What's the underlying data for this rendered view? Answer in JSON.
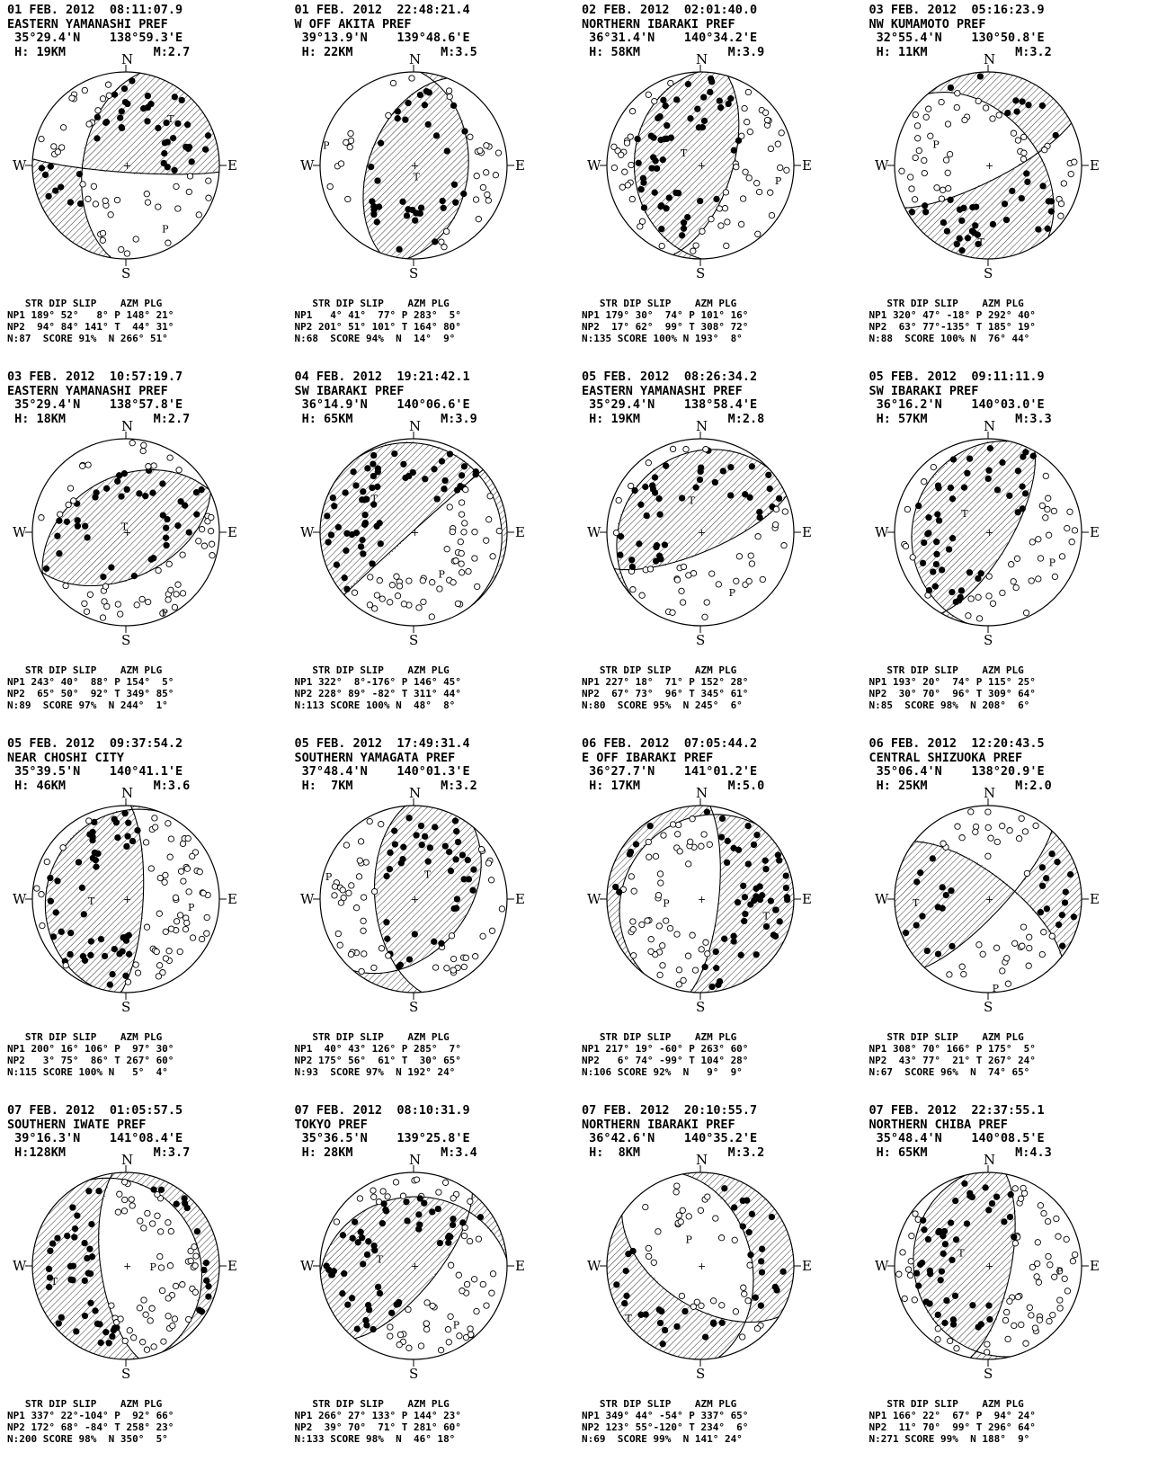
{
  "table_header": "   STR DIP SLIP    AZM PLG",
  "score_label": "SCORE",
  "directions": {
    "north": "N",
    "south": "S",
    "east": "E",
    "west": "W"
  },
  "axis_letters": {
    "p": "P",
    "t": "T"
  },
  "events": [
    {
      "date": "01 FEB. 2012",
      "time": "08:11:07.9",
      "region": "EASTERN YAMANASHI PREF",
      "lat": "35°29.4'N",
      "lon": "138°59.3'E",
      "depth": "H: 19KM",
      "mag": "M:2.7",
      "np1": {
        "str": 189,
        "dip": 52,
        "slip": 8
      },
      "np2": {
        "str": 94,
        "dip": 84,
        "slip": 141
      },
      "p": {
        "azm": 148,
        "plg": 21
      },
      "t": {
        "azm": 44,
        "plg": 31
      },
      "n": {
        "azm": 266,
        "plg": 51
      },
      "count": 87,
      "score": "91%",
      "np1_line": "NP1 189° 52°   8° P 148° 21°",
      "np2_line": "NP2  94° 84° 141° T  44° 31°",
      "n_line": "N:87  SCORE 91%  N 266° 51°"
    },
    {
      "date": "01 FEB. 2012",
      "time": "22:48:21.4",
      "region": "W OFF AKITA PREF",
      "lat": "39°13.9'N",
      "lon": "139°48.6'E",
      "depth": "H: 22KM",
      "mag": "M:3.5",
      "np1": {
        "str": 4,
        "dip": 41,
        "slip": 77
      },
      "np2": {
        "str": 201,
        "dip": 51,
        "slip": 101
      },
      "p": {
        "azm": 283,
        "plg": 5
      },
      "t": {
        "azm": 164,
        "plg": 80
      },
      "n": {
        "azm": 14,
        "plg": 9
      },
      "count": 68,
      "score": "94%",
      "np1_line": "NP1   4° 41°  77° P 283°  5°",
      "np2_line": "NP2 201° 51° 101° T 164° 80°",
      "n_line": "N:68  SCORE 94%  N  14°  9°"
    },
    {
      "date": "02 FEB. 2012",
      "time": "02:01:40.0",
      "region": "NORTHERN IBARAKI PREF",
      "lat": "36°31.4'N",
      "lon": "140°34.2'E",
      "depth": "H: 58KM",
      "mag": "M:3.9",
      "np1": {
        "str": 179,
        "dip": 30,
        "slip": 74
      },
      "np2": {
        "str": 17,
        "dip": 62,
        "slip": 99
      },
      "p": {
        "azm": 101,
        "plg": 16
      },
      "t": {
        "azm": 308,
        "plg": 72
      },
      "n": {
        "azm": 193,
        "plg": 8
      },
      "count": 135,
      "score": "100%",
      "np1_line": "NP1 179° 30°  74° P 101° 16°",
      "np2_line": "NP2  17° 62°  99° T 308° 72°",
      "n_line": "N:135 SCORE 100% N 193°  8°"
    },
    {
      "date": "03 FEB. 2012",
      "time": "05:16:23.9",
      "region": "NW KUMAMOTO PREF",
      "lat": "32°55.4'N",
      "lon": "130°50.8'E",
      "depth": "H: 11KM",
      "mag": "M:3.2",
      "np1": {
        "str": 320,
        "dip": 47,
        "slip": -18
      },
      "np2": {
        "str": 63,
        "dip": 77,
        "slip": -135
      },
      "p": {
        "azm": 292,
        "plg": 40
      },
      "t": {
        "azm": 185,
        "plg": 19
      },
      "n": {
        "azm": 76,
        "plg": 44
      },
      "count": 88,
      "score": "100%",
      "np1_line": "NP1 320° 47° -18° P 292° 40°",
      "np2_line": "NP2  63° 77°-135° T 185° 19°",
      "n_line": "N:88  SCORE 100% N  76° 44°"
    },
    {
      "date": "03 FEB. 2012",
      "time": "10:57:19.7",
      "region": "EASTERN YAMANASHI PREF",
      "lat": "35°29.4'N",
      "lon": "138°57.8'E",
      "depth": "H: 18KM",
      "mag": "M:2.7",
      "np1": {
        "str": 243,
        "dip": 40,
        "slip": 88
      },
      "np2": {
        "str": 65,
        "dip": 50,
        "slip": 92
      },
      "p": {
        "azm": 154,
        "plg": 5
      },
      "t": {
        "azm": 349,
        "plg": 85
      },
      "n": {
        "azm": 244,
        "plg": 1
      },
      "count": 89,
      "score": "97%",
      "np1_line": "NP1 243° 40°  88° P 154°  5°",
      "np2_line": "NP2  65° 50°  92° T 349° 85°",
      "n_line": "N:89  SCORE 97%  N 244°  1°"
    },
    {
      "date": "04 FEB. 2012",
      "time": "19:21:42.1",
      "region": "SW IBARAKI PREF",
      "lat": "36°14.9'N",
      "lon": "140°06.6'E",
      "depth": "H: 65KM",
      "mag": "M:3.9",
      "np1": {
        "str": 322,
        "dip": 8,
        "slip": -176
      },
      "np2": {
        "str": 228,
        "dip": 89,
        "slip": -82
      },
      "p": {
        "azm": 146,
        "plg": 45
      },
      "t": {
        "azm": 311,
        "plg": 44
      },
      "n": {
        "azm": 48,
        "plg": 8
      },
      "count": 113,
      "score": "100%",
      "np1_line": "NP1 322°  8°-176° P 146° 45°",
      "np2_line": "NP2 228° 89° -82° T 311° 44°",
      "n_line": "N:113 SCORE 100% N  48°  8°"
    },
    {
      "date": "05 FEB. 2012",
      "time": "08:26:34.2",
      "region": "EASTERN YAMANASHI PREF",
      "lat": "35°29.4'N",
      "lon": "138°58.4'E",
      "depth": "H: 19KM",
      "mag": "M:2.8",
      "np1": {
        "str": 227,
        "dip": 18,
        "slip": 71
      },
      "np2": {
        "str": 67,
        "dip": 73,
        "slip": 96
      },
      "p": {
        "azm": 152,
        "plg": 28
      },
      "t": {
        "azm": 345,
        "plg": 61
      },
      "n": {
        "azm": 245,
        "plg": 6
      },
      "count": 80,
      "score": "95%",
      "np1_line": "NP1 227° 18°  71° P 152° 28°",
      "np2_line": "NP2  67° 73°  96° T 345° 61°",
      "n_line": "N:80  SCORE 95%  N 245°  6°"
    },
    {
      "date": "05 FEB. 2012",
      "time": "09:11:11.9",
      "region": "SW IBARAKI PREF",
      "lat": "36°16.2'N",
      "lon": "140°03.0'E",
      "depth": "H: 57KM",
      "mag": "M:3.3",
      "np1": {
        "str": 193,
        "dip": 20,
        "slip": 74
      },
      "np2": {
        "str": 30,
        "dip": 70,
        "slip": 96
      },
      "p": {
        "azm": 115,
        "plg": 25
      },
      "t": {
        "azm": 309,
        "plg": 64
      },
      "n": {
        "azm": 208,
        "plg": 6
      },
      "count": 85,
      "score": "98%",
      "np1_line": "NP1 193° 20°  74° P 115° 25°",
      "np2_line": "NP2  30° 70°  96° T 309° 64°",
      "n_line": "N:85  SCORE 98%  N 208°  6°"
    },
    {
      "date": "05 FEB. 2012",
      "time": "09:37:54.2",
      "region": "NEAR CHOSHI CITY",
      "lat": "35°39.5'N",
      "lon": "140°41.1'E",
      "depth": "H: 46KM",
      "mag": "M:3.6",
      "np1": {
        "str": 200,
        "dip": 16,
        "slip": 106
      },
      "np2": {
        "str": 3,
        "dip": 75,
        "slip": 86
      },
      "p": {
        "azm": 97,
        "plg": 30
      },
      "t": {
        "azm": 267,
        "plg": 60
      },
      "n": {
        "azm": 5,
        "plg": 4
      },
      "count": 115,
      "score": "100%",
      "np1_line": "NP1 200° 16° 106° P  97° 30°",
      "np2_line": "NP2   3° 75°  86° T 267° 60°",
      "n_line": "N:115 SCORE 100% N   5°  4°"
    },
    {
      "date": "05 FEB. 2012",
      "time": "17:49:31.4",
      "region": "SOUTHERN YAMAGATA PREF",
      "lat": "37°48.4'N",
      "lon": "140°01.3'E",
      "depth": "H:  7KM",
      "mag": "M:3.2",
      "np1": {
        "str": 40,
        "dip": 43,
        "slip": 126
      },
      "np2": {
        "str": 175,
        "dip": 56,
        "slip": 61
      },
      "p": {
        "azm": 285,
        "plg": 7
      },
      "t": {
        "azm": 30,
        "plg": 65
      },
      "n": {
        "azm": 192,
        "plg": 24
      },
      "count": 93,
      "score": "97%",
      "np1_line": "NP1  40° 43° 126° P 285°  7°",
      "np2_line": "NP2 175° 56°  61° T  30° 65°",
      "n_line": "N:93  SCORE 97%  N 192° 24°"
    },
    {
      "date": "06 FEB. 2012",
      "time": "07:05:44.2",
      "region": "E OFF IBARAKI PREF",
      "lat": "36°27.7'N",
      "lon": "141°01.2'E",
      "depth": "H: 17KM",
      "mag": "M:5.0",
      "np1": {
        "str": 217,
        "dip": 19,
        "slip": -60
      },
      "np2": {
        "str": 6,
        "dip": 74,
        "slip": -99
      },
      "p": {
        "azm": 263,
        "plg": 60
      },
      "t": {
        "azm": 104,
        "plg": 28
      },
      "n": {
        "azm": 9,
        "plg": 9
      },
      "count": 106,
      "score": "92%",
      "np1_line": "NP1 217° 19° -60° P 263° 60°",
      "np2_line": "NP2   6° 74° -99° T 104° 28°",
      "n_line": "N:106 SCORE 92%  N   9°  9°"
    },
    {
      "date": "06 FEB. 2012",
      "time": "12:20:43.5",
      "region": "CENTRAL SHIZUOKA PREF",
      "lat": "35°06.4'N",
      "lon": "138°20.9'E",
      "depth": "H: 25KM",
      "mag": "M:2.0",
      "np1": {
        "str": 308,
        "dip": 70,
        "slip": 166
      },
      "np2": {
        "str": 43,
        "dip": 77,
        "slip": 21
      },
      "p": {
        "azm": 175,
        "plg": 5
      },
      "t": {
        "azm": 267,
        "plg": 24
      },
      "n": {
        "azm": 74,
        "plg": 65
      },
      "count": 67,
      "score": "96%",
      "np1_line": "NP1 308° 70° 166° P 175°  5°",
      "np2_line": "NP2  43° 77°  21° T 267° 24°",
      "n_line": "N:67  SCORE 96%  N  74° 65°"
    },
    {
      "date": "07 FEB. 2012",
      "time": "01:05:57.5",
      "region": "SOUTHERN IWATE PREF",
      "lat": "39°16.3'N",
      "lon": "141°08.4'E",
      "depth": "H:128KM",
      "mag": "M:3.7",
      "np1": {
        "str": 337,
        "dip": 22,
        "slip": -104
      },
      "np2": {
        "str": 172,
        "dip": 68,
        "slip": -84
      },
      "p": {
        "azm": 92,
        "plg": 66
      },
      "t": {
        "azm": 258,
        "plg": 23
      },
      "n": {
        "azm": 350,
        "plg": 5
      },
      "count": 200,
      "score": "98%",
      "np1_line": "NP1 337° 22°-104° P  92° 66°",
      "np2_line": "NP2 172° 68° -84° T 258° 23°",
      "n_line": "N:200 SCORE 98%  N 350°  5°"
    },
    {
      "date": "07 FEB. 2012",
      "time": "08:10:31.9",
      "region": "TOKYO PREF",
      "lat": "35°36.5'N",
      "lon": "139°25.8'E",
      "depth": "H: 28KM",
      "mag": "M:3.4",
      "np1": {
        "str": 266,
        "dip": 27,
        "slip": 133
      },
      "np2": {
        "str": 39,
        "dip": 70,
        "slip": 71
      },
      "p": {
        "azm": 144,
        "plg": 23
      },
      "t": {
        "azm": 281,
        "plg": 60
      },
      "n": {
        "azm": 46,
        "plg": 18
      },
      "count": 133,
      "score": "98%",
      "np1_line": "NP1 266° 27° 133° P 144° 23°",
      "np2_line": "NP2  39° 70°  71° T 281° 60°",
      "n_line": "N:133 SCORE 98%  N  46° 18°"
    },
    {
      "date": "07 FEB. 2012",
      "time": "20:10:55.7",
      "region": "NORTHERN IBARAKI PREF",
      "lat": "36°42.6'N",
      "lon": "140°35.2'E",
      "depth": "H:  8KM",
      "mag": "M:3.2",
      "np1": {
        "str": 349,
        "dip": 44,
        "slip": -54
      },
      "np2": {
        "str": 123,
        "dip": 55,
        "slip": -120
      },
      "p": {
        "azm": 337,
        "plg": 65
      },
      "t": {
        "azm": 234,
        "plg": 6
      },
      "n": {
        "azm": 141,
        "plg": 24
      },
      "count": 69,
      "score": "99%",
      "np1_line": "NP1 349° 44° -54° P 337° 65°",
      "np2_line": "NP2 123° 55°-120° T 234°  6°",
      "n_line": "N:69  SCORE 99%  N 141° 24°"
    },
    {
      "date": "07 FEB. 2012",
      "time": "22:37:55.1",
      "region": "NORTHERN CHIBA PREF",
      "lat": "35°48.4'N",
      "lon": "140°08.5'E",
      "depth": "H: 65KM",
      "mag": "M:4.3",
      "np1": {
        "str": 166,
        "dip": 22,
        "slip": 67
      },
      "np2": {
        "str": 11,
        "dip": 70,
        "slip": 99
      },
      "p": {
        "azm": 94,
        "plg": 24
      },
      "t": {
        "azm": 296,
        "plg": 64
      },
      "n": {
        "azm": 188,
        "plg": 9
      },
      "count": 271,
      "score": "99%",
      "np1_line": "NP1 166° 22°  67° P  94° 24°",
      "np2_line": "NP2  11° 70°  99° T 296° 64°",
      "n_line": "N:271 SCORE 99%  N 188°  9°"
    }
  ]
}
